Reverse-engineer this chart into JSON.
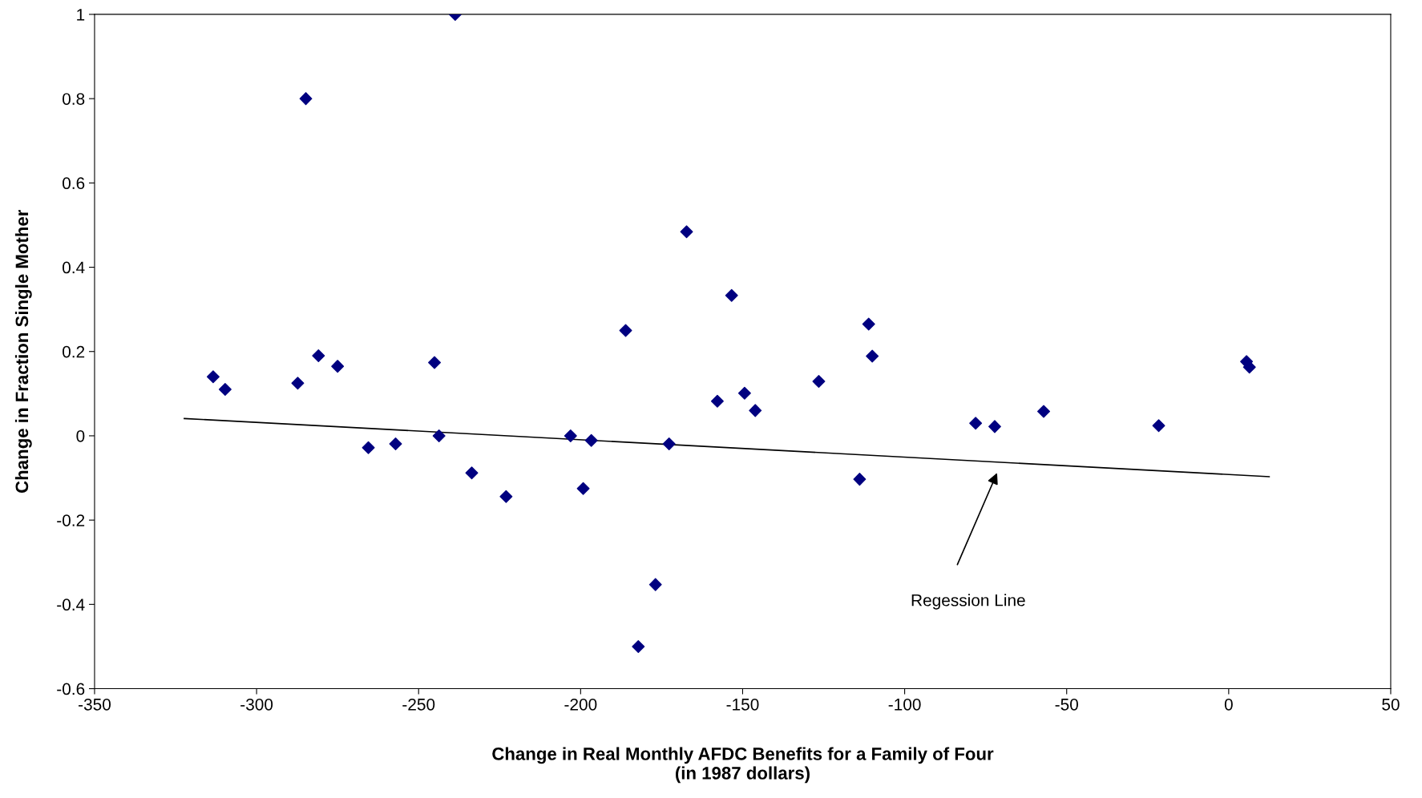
{
  "chart_data": {
    "type": "scatter",
    "xlabel": "Change in Real Monthly AFDC Benefits for a Family of Four\n(in 1987 dollars)",
    "ylabel": "Change in Fraction Single Mother",
    "xlim": [
      -350,
      50
    ],
    "xticks": [
      -350,
      -300,
      -250,
      -200,
      -150,
      -100,
      -50,
      0,
      50
    ],
    "ylim": [
      -0.6,
      1
    ],
    "yticks": [
      -0.6,
      -0.4,
      -0.2,
      0,
      0.2,
      0.4,
      0.6,
      0.8,
      1
    ],
    "grid": false,
    "legend": false,
    "series": [
      {
        "marker": "diamond",
        "color": "#000080",
        "x": [
          -313.4,
          -309.7,
          -287.3,
          -284.8,
          -280.9,
          -275.0,
          -265.5,
          -257.1,
          -245.1,
          -243.7,
          -238.7,
          -233.6,
          -223.0,
          -203.1,
          -199.2,
          -196.7,
          -186.1,
          -182.2,
          -176.9,
          -172.7,
          -167.3,
          -157.8,
          -153.4,
          -149.4,
          -146.1,
          -126.5,
          -113.9,
          -111.1,
          -110.0,
          -78.1,
          -72.2,
          -57.1,
          -21.6,
          5.5,
          6.4
        ],
        "values": [
          0.14,
          0.11,
          0.125,
          0.8,
          0.19,
          0.165,
          -0.028,
          -0.019,
          0.174,
          0.0,
          1.0,
          -0.088,
          -0.144,
          0.0,
          -0.125,
          -0.011,
          0.25,
          -0.5,
          -0.353,
          -0.019,
          0.484,
          0.082,
          0.333,
          0.101,
          0.06,
          0.129,
          -0.103,
          0.265,
          0.189,
          0.03,
          0.022,
          0.058,
          0.024,
          0.176,
          0.163
        ]
      },
      {
        "type": "line",
        "color": "#000000",
        "line_style": "solid",
        "x": [
          -322.3,
          12.5
        ],
        "values": [
          0.041,
          -0.097
        ]
      }
    ],
    "annotations": [
      "Regession Line"
    ]
  }
}
